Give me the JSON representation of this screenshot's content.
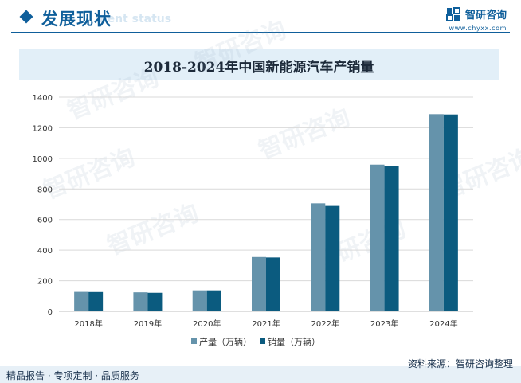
{
  "header": {
    "section_title": "发展现状",
    "section_subtitle": "ment status",
    "brand_name": "智研咨询",
    "brand_url": "www.chyxx.com"
  },
  "watermark": {
    "text": "智研咨询"
  },
  "chart_data": {
    "type": "bar",
    "title": "2018-2024年中国新能源汽车产销量",
    "categories": [
      "2018年",
      "2019年",
      "2020年",
      "2021年",
      "2022年",
      "2023年",
      "2024年"
    ],
    "series": [
      {
        "name": "产量（万辆）",
        "values": [
          127,
          124,
          137,
          355,
          706,
          959,
          1289
        ]
      },
      {
        "name": "销量（万辆）",
        "values": [
          126,
          121,
          137,
          352,
          689,
          951,
          1287
        ]
      }
    ],
    "ylim": [
      0,
      1400
    ],
    "yticks": [
      0,
      200,
      400,
      600,
      800,
      1000,
      1200,
      1400
    ],
    "grid": true,
    "legend_position": "bottom-center",
    "colors": [
      "#6593ab",
      "#0b5b7f"
    ]
  },
  "footer": {
    "left_text": "精品报告 · 专项定制 · 品质服务",
    "source": "资料来源：智研咨询整理"
  }
}
